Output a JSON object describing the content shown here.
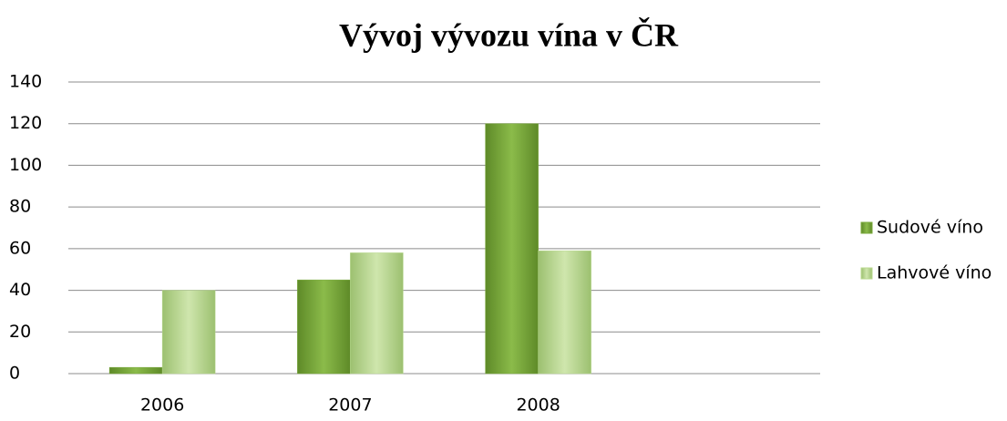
{
  "chart_data": {
    "type": "bar",
    "title": "Vývoj vývozu vína v ČR",
    "categories": [
      "2006",
      "2007",
      "2008",
      null
    ],
    "series": [
      {
        "name": "Sudové víno",
        "color": "#78a83a",
        "values": [
          3,
          45,
          120,
          null
        ]
      },
      {
        "name": "Lahvové víno",
        "color": "#b8d88e",
        "values": [
          40,
          58,
          59,
          null
        ]
      }
    ],
    "ylim": [
      0,
      140
    ],
    "yticks": [
      0,
      20,
      40,
      60,
      80,
      100,
      120,
      140
    ],
    "grid": true,
    "legend": "right"
  }
}
